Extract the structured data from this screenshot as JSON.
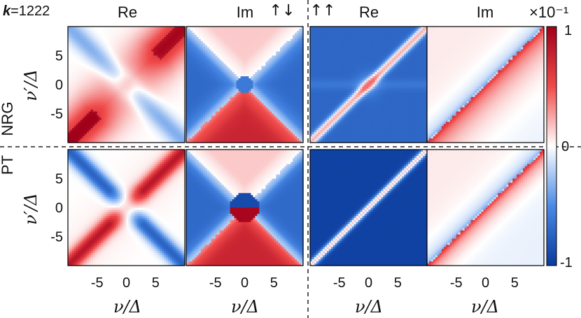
{
  "label": {
    "k_symbol": "k",
    "k_value": "=1222"
  },
  "spin_labels": {
    "up_down": "↑↓",
    "up_up": "↑↑"
  },
  "row_labels": [
    "NRG",
    "PT"
  ],
  "column_titles": [
    "Re",
    "Im",
    "Re",
    "Im"
  ],
  "x_axis_label": "ν/Δ",
  "y_axis_label": "ν′/Δ",
  "colorbar": {
    "scale_label": "×10⁻¹",
    "ticks": [
      "1",
      "0",
      "-1"
    ],
    "colors": {
      "low": "#0a3a9c",
      "mid": "#ffffff",
      "high": "#a0001a"
    }
  },
  "chart_data": {
    "type": "heatmap",
    "axis_range": [
      -10,
      10
    ],
    "x_ticks": [
      -5,
      0,
      5
    ],
    "y_ticks": [
      5,
      0,
      -5
    ],
    "color_range": [
      -1,
      1
    ],
    "panels": [
      {
        "row": "NRG",
        "spin": "↑↓",
        "part": "Re",
        "kind": "re_ud",
        "variant": "nrg"
      },
      {
        "row": "NRG",
        "spin": "↑↓",
        "part": "Im",
        "kind": "im_ud",
        "variant": "nrg"
      },
      {
        "row": "NRG",
        "spin": "↑↑",
        "part": "Re",
        "kind": "re_uu",
        "variant": "nrg"
      },
      {
        "row": "NRG",
        "spin": "↑↑",
        "part": "Im",
        "kind": "im_uu",
        "variant": "nrg"
      },
      {
        "row": "PT",
        "spin": "↑↓",
        "part": "Re",
        "kind": "re_ud",
        "variant": "pt"
      },
      {
        "row": "PT",
        "spin": "↑↓",
        "part": "Im",
        "kind": "im_ud",
        "variant": "pt"
      },
      {
        "row": "PT",
        "spin": "↑↑",
        "part": "Re",
        "kind": "re_uu",
        "variant": "pt"
      },
      {
        "row": "PT",
        "spin": "↑↑",
        "part": "Im",
        "kind": "im_uu",
        "variant": "pt"
      }
    ]
  }
}
